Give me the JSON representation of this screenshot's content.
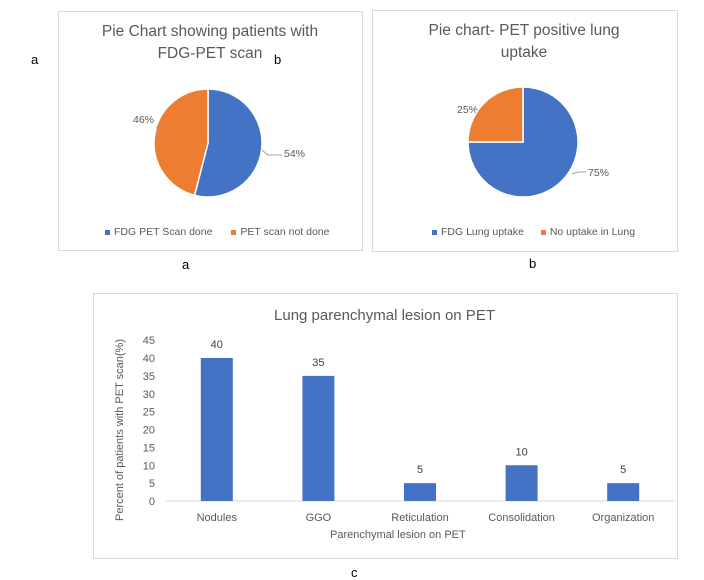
{
  "figure_labels": {
    "a_left": "a",
    "b_inline": "b",
    "caption_a": "a",
    "caption_b": "b",
    "caption_c": "c"
  },
  "chart_data": [
    {
      "type": "pie",
      "title_lines": [
        "Pie Chart showing patients with",
        "FDG-PET scan"
      ],
      "slices": [
        {
          "label": "FDG PET Scan done",
          "value": 54,
          "data_label": "54%",
          "color": "#4472C4"
        },
        {
          "label": "PET scan not done",
          "value": 46,
          "data_label": "46%",
          "color": "#ED7D31"
        }
      ],
      "legend": "bottom"
    },
    {
      "type": "pie",
      "title_lines": [
        "Pie chart- PET positive lung",
        "uptake"
      ],
      "slices": [
        {
          "label": "FDG Lung uptake",
          "value": 75,
          "data_label": "75%",
          "color": "#4472C4"
        },
        {
          "label": "No uptake in Lung",
          "value": 25,
          "data_label": "25%",
          "color": "#ED7D31"
        }
      ],
      "legend": "bottom"
    },
    {
      "type": "bar",
      "title": "Lung parenchymal lesion on PET",
      "categories": [
        "Nodules",
        "GGO",
        "Reticulation",
        "Consolidation",
        "Organization"
      ],
      "values": [
        40,
        35,
        5,
        10,
        5
      ],
      "xlabel": "Parenchymal lesion on PET",
      "ylabel": "Percent of patients with PET scan(%)",
      "ylim": [
        0,
        45
      ],
      "yticks": [
        0,
        5,
        10,
        15,
        20,
        25,
        30,
        35,
        40,
        45
      ],
      "grid": false,
      "color": "#4472C4"
    }
  ]
}
